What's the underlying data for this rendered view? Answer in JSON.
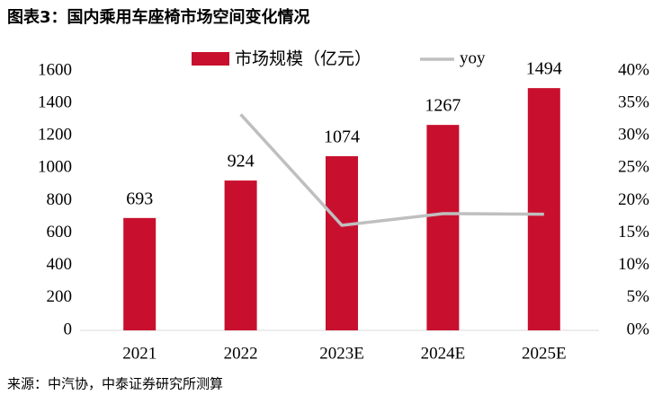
{
  "chart_data": {
    "type": "bar",
    "title": "图表3：国内乘用车座椅市场空间变化情况",
    "source": "来源：中汽协，中泰证券研究所测算",
    "categories": [
      "2021",
      "2022",
      "2023E",
      "2024E",
      "2025E"
    ],
    "series": [
      {
        "name": "市场规模（亿元）",
        "type": "bar",
        "color": "#c8102e",
        "values": [
          693,
          924,
          1074,
          1267,
          1494
        ]
      },
      {
        "name": "yoy",
        "type": "line",
        "axis": "y2",
        "color": "#bfbfbf",
        "values": [
          null,
          33.3,
          16.2,
          18.0,
          17.9
        ]
      }
    ],
    "ylim": [
      0,
      1600
    ],
    "yticks": [
      0,
      200,
      400,
      600,
      800,
      1000,
      1200,
      1400,
      1600
    ],
    "y2lim": [
      0,
      40
    ],
    "y2ticks": [
      {
        "value": 0,
        "label": "0%"
      },
      {
        "value": 5,
        "label": "5%"
      },
      {
        "value": 10,
        "label": "10%"
      },
      {
        "value": 15,
        "label": "15%"
      },
      {
        "value": 20,
        "label": "20%"
      },
      {
        "value": 25,
        "label": "25%"
      },
      {
        "value": 30,
        "label": "30%"
      },
      {
        "value": 35,
        "label": "35%"
      },
      {
        "value": 40,
        "label": "40%"
      }
    ],
    "grid": false,
    "legend": "top"
  }
}
